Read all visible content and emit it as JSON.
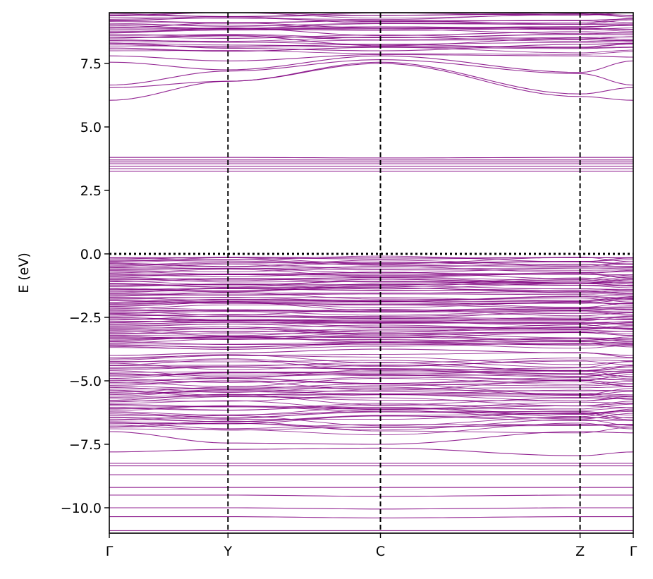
{
  "chart_data": {
    "type": "line",
    "title": "",
    "xlabel": "",
    "ylabel": "E (eV)",
    "ylim": [
      -11.0,
      9.5
    ],
    "xlim": [
      0,
      1
    ],
    "grid": false,
    "line_color": "#800080",
    "vline_color": "#000000",
    "fermi_level": 0.0,
    "high_symmetry_points": [
      {
        "label": "Γ",
        "x": 0.0
      },
      {
        "label": "Y",
        "x": 0.2265
      },
      {
        "label": "C",
        "x": 0.5175
      },
      {
        "label": "Z",
        "x": 0.8985
      },
      {
        "label": "Γ",
        "x": 1.0
      }
    ],
    "y_ticks": [
      {
        "value": 7.5,
        "label": "7.5"
      },
      {
        "value": 5.0,
        "label": "5.0"
      },
      {
        "value": 2.5,
        "label": "2.5"
      },
      {
        "value": 0.0,
        "label": "0.0"
      },
      {
        "value": -2.5,
        "label": "−2.5"
      },
      {
        "value": -5.0,
        "label": "−5.0"
      },
      {
        "value": -7.5,
        "label": "−7.5"
      },
      {
        "value": -10.0,
        "label": "−10.0"
      }
    ],
    "highlighted_bands": [
      {
        "name": "cb1",
        "values": [
          6.05,
          6.8,
          7.5,
          6.2,
          6.05
        ]
      },
      {
        "name": "cb2",
        "values": [
          6.55,
          6.8,
          7.55,
          6.3,
          6.55
        ]
      },
      {
        "name": "cb3",
        "values": [
          6.65,
          7.2,
          7.65,
          7.1,
          6.65
        ]
      },
      {
        "name": "cb4",
        "values": [
          7.55,
          7.25,
          7.8,
          7.15,
          7.6
        ]
      },
      {
        "name": "cb5",
        "values": [
          7.8,
          7.6,
          7.85,
          7.8,
          7.75
        ]
      },
      {
        "name": "cb6",
        "values": [
          8.3,
          8.1,
          8.0,
          8.25,
          8.3
        ]
      },
      {
        "name": "cb7",
        "values": [
          8.5,
          8.6,
          8.2,
          8.5,
          8.45
        ]
      },
      {
        "name": "cb8",
        "values": [
          8.7,
          8.9,
          8.6,
          8.75,
          8.7
        ]
      },
      {
        "name": "cb9",
        "values": [
          8.9,
          9.1,
          8.9,
          8.95,
          9.0
        ]
      },
      {
        "name": "cb10",
        "values": [
          9.2,
          9.3,
          9.15,
          9.2,
          9.25
        ]
      },
      {
        "name": "cb11",
        "values": [
          9.4,
          9.35,
          9.4,
          9.45,
          9.4
        ]
      },
      {
        "name": "flat1",
        "values": [
          3.25,
          3.25,
          3.25,
          3.25,
          3.25
        ]
      },
      {
        "name": "flat2",
        "values": [
          3.35,
          3.35,
          3.35,
          3.35,
          3.35
        ]
      },
      {
        "name": "flat3",
        "values": [
          3.45,
          3.45,
          3.45,
          3.45,
          3.45
        ]
      },
      {
        "name": "flat4",
        "values": [
          3.55,
          3.55,
          3.55,
          3.55,
          3.55
        ]
      },
      {
        "name": "flat5",
        "values": [
          3.62,
          3.62,
          3.62,
          3.62,
          3.62
        ]
      },
      {
        "name": "flat6",
        "values": [
          3.7,
          3.7,
          3.7,
          3.7,
          3.7
        ]
      },
      {
        "name": "flat7",
        "values": [
          3.8,
          3.8,
          3.78,
          3.8,
          3.8
        ]
      },
      {
        "name": "gap_edge",
        "values": [
          -0.15,
          -0.15,
          -0.2,
          -0.15,
          -0.15
        ]
      },
      {
        "name": "vb_mid",
        "values": [
          -4.0,
          -3.9,
          -3.75,
          -3.9,
          -4.0
        ]
      },
      {
        "name": "vb_low1",
        "values": [
          -7.0,
          -7.45,
          -7.5,
          -7.0,
          -7.05
        ]
      },
      {
        "name": "vb_low2",
        "values": [
          -7.8,
          -7.7,
          -7.65,
          -7.95,
          -7.8
        ]
      },
      {
        "name": "vb_low3",
        "values": [
          -8.25,
          -8.25,
          -8.25,
          -8.25,
          -8.25
        ]
      },
      {
        "name": "vb_low4",
        "values": [
          -8.35,
          -8.35,
          -8.35,
          -8.35,
          -8.35
        ]
      },
      {
        "name": "vb_low5",
        "values": [
          -8.7,
          -8.7,
          -8.7,
          -8.7,
          -8.7
        ]
      },
      {
        "name": "vb_low6",
        "values": [
          -9.2,
          -9.2,
          -9.2,
          -9.2,
          -9.2
        ]
      },
      {
        "name": "vb_low7",
        "values": [
          -9.5,
          -9.5,
          -9.55,
          -9.5,
          -9.5
        ]
      },
      {
        "name": "vb_low8",
        "values": [
          -10.0,
          -10.0,
          -10.05,
          -10.0,
          -10.0
        ]
      },
      {
        "name": "vb_low9",
        "values": [
          -10.35,
          -10.35,
          -10.4,
          -10.35,
          -10.35
        ]
      },
      {
        "name": "vb_low10",
        "values": [
          -10.9,
          -10.9,
          -10.9,
          -10.9,
          -10.9
        ]
      }
    ]
  }
}
